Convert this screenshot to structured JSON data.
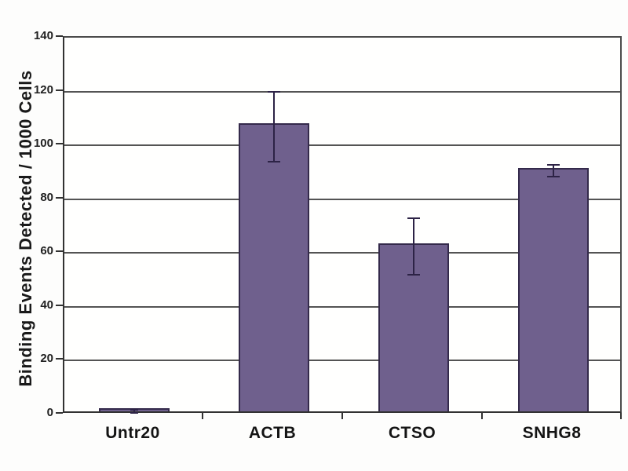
{
  "chart_data": {
    "type": "bar",
    "title": "",
    "xlabel": "",
    "ylabel": "Binding Events Detected / 1000 Cells",
    "categories": [
      "Untr20",
      "ACTB",
      "CTSO",
      "SNHG8"
    ],
    "values": [
      1.2,
      107,
      62.5,
      90.5
    ],
    "error_bars": [
      0.6,
      13,
      10.5,
      2.2
    ],
    "yticks": [
      0,
      20,
      40,
      60,
      80,
      100,
      120,
      140
    ],
    "ylim": [
      0,
      140
    ],
    "grid": true,
    "legend": "none",
    "bar_color": "#6f608d",
    "bar_border_color": "#342a4b",
    "error_color": "#2d2346",
    "gridline_color": "#545454",
    "text_color": "#191919"
  }
}
